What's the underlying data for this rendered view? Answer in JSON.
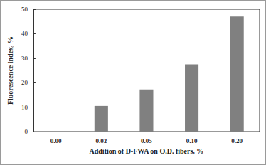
{
  "chart_data": {
    "type": "bar",
    "x_label": "Addition of D-FWA on O.D. fibers, %",
    "y_label": "Fluorescence index, %",
    "categories": [
      "0.00",
      "0.03",
      "0.05",
      "0.10",
      "0.20"
    ],
    "values": [
      0,
      10.5,
      17.2,
      27.5,
      47.0
    ],
    "color": "#808080",
    "ylim": [
      0,
      50
    ],
    "yticks": [
      0,
      10,
      20,
      30,
      40,
      50
    ],
    "grid": false
  }
}
